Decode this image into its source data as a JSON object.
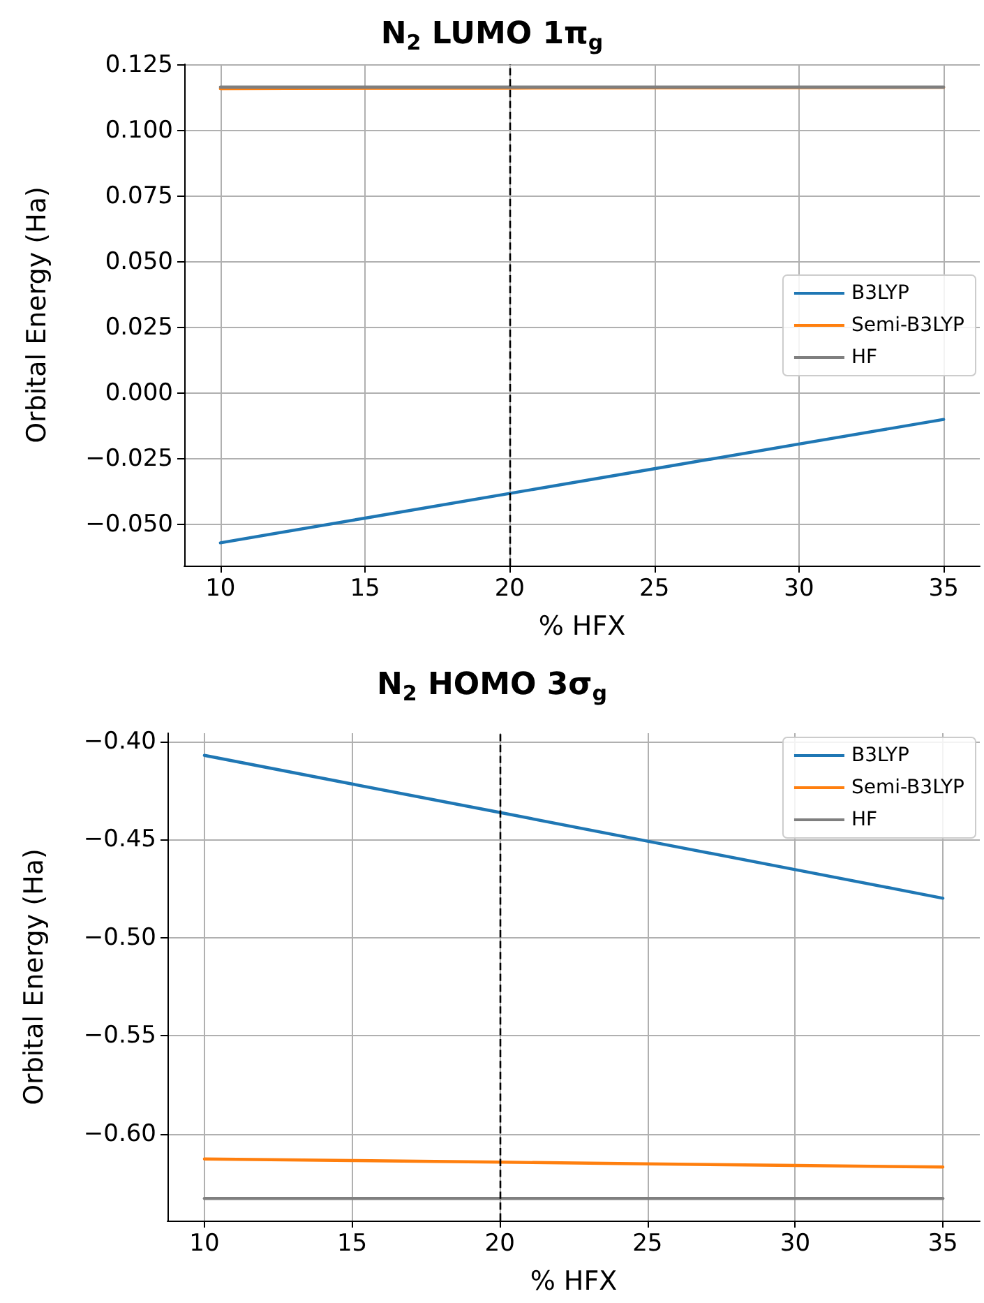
{
  "chart_data": [
    {
      "type": "line",
      "title": "N$_{2}$ LUMO 1π$_{g}$",
      "xlabel": "% HFX",
      "ylabel": "Orbital Energy (Ha)",
      "x": [
        10,
        15,
        20,
        25,
        30,
        35
      ],
      "series": [
        {
          "name": "B3LYP",
          "color": "#1f77b4",
          "values": [
            -0.057,
            -0.0476,
            -0.0382,
            -0.0288,
            -0.0194,
            -0.01
          ]
        },
        {
          "name": "Semi-B3LYP",
          "color": "#ff7f0e",
          "values": [
            0.116,
            0.1161,
            0.1162,
            0.1163,
            0.1164,
            0.1165
          ]
        },
        {
          "name": "HF",
          "color": "#7f7f7f",
          "values": [
            0.1166,
            0.1166,
            0.1166,
            0.1166,
            0.1166,
            0.1166
          ]
        }
      ],
      "xlim": [
        8.75,
        36.25
      ],
      "xticks": [
        10,
        15,
        20,
        25,
        30,
        35
      ],
      "ylim": [
        -0.0657,
        0.1253
      ],
      "yticks": [
        {
          "value": -0.05,
          "label": "−0.050"
        },
        {
          "value": -0.025,
          "label": "−0.025"
        },
        {
          "value": 0,
          "label": "0.000"
        },
        {
          "value": 0.025,
          "label": "0.025"
        },
        {
          "value": 0.05,
          "label": "0.050"
        },
        {
          "value": 0.075,
          "label": "0.075"
        },
        {
          "value": 0.1,
          "label": "0.100"
        },
        {
          "value": 0.125,
          "label": "0.125"
        }
      ],
      "ref_lines": [
        {
          "axis": "x",
          "value": 20,
          "color": "#000000",
          "line_style": "dashed"
        }
      ],
      "grid": true,
      "legend": "right",
      "marker": "none",
      "line_style": "solid"
    },
    {
      "type": "line",
      "title": "N$_{2}$ HOMO 3σ$_{g}$",
      "xlabel": "% HFX",
      "ylabel": "Orbital Energy (Ha)",
      "x": [
        10,
        15,
        20,
        25,
        30,
        35
      ],
      "series": [
        {
          "name": "B3LYP",
          "color": "#1f77b4",
          "values": [
            -0.4072,
            -0.4218,
            -0.4363,
            -0.4509,
            -0.4654,
            -0.48
          ]
        },
        {
          "name": "Semi-B3LYP",
          "color": "#ff7f0e",
          "values": [
            -0.6129,
            -0.6137,
            -0.6145,
            -0.6154,
            -0.6162,
            -0.617
          ]
        },
        {
          "name": "HF",
          "color": "#7f7f7f",
          "values": [
            -0.633,
            -0.633,
            -0.633,
            -0.633,
            -0.633,
            -0.633
          ]
        }
      ],
      "xlim": [
        8.75,
        36.25
      ],
      "xticks": [
        10,
        15,
        20,
        25,
        30,
        35
      ],
      "ylim": [
        -0.6443,
        -0.3959
      ],
      "yticks": [
        {
          "value": -0.6,
          "label": "−0.60"
        },
        {
          "value": -0.55,
          "label": "−0.55"
        },
        {
          "value": -0.5,
          "label": "−0.50"
        },
        {
          "value": -0.45,
          "label": "−0.45"
        },
        {
          "value": -0.4,
          "label": "−0.40"
        }
      ],
      "ref_lines": [
        {
          "axis": "x",
          "value": 20,
          "color": "#000000",
          "line_style": "dashed"
        }
      ],
      "grid": true,
      "legend": "top right",
      "marker": "none",
      "line_style": "solid"
    }
  ]
}
